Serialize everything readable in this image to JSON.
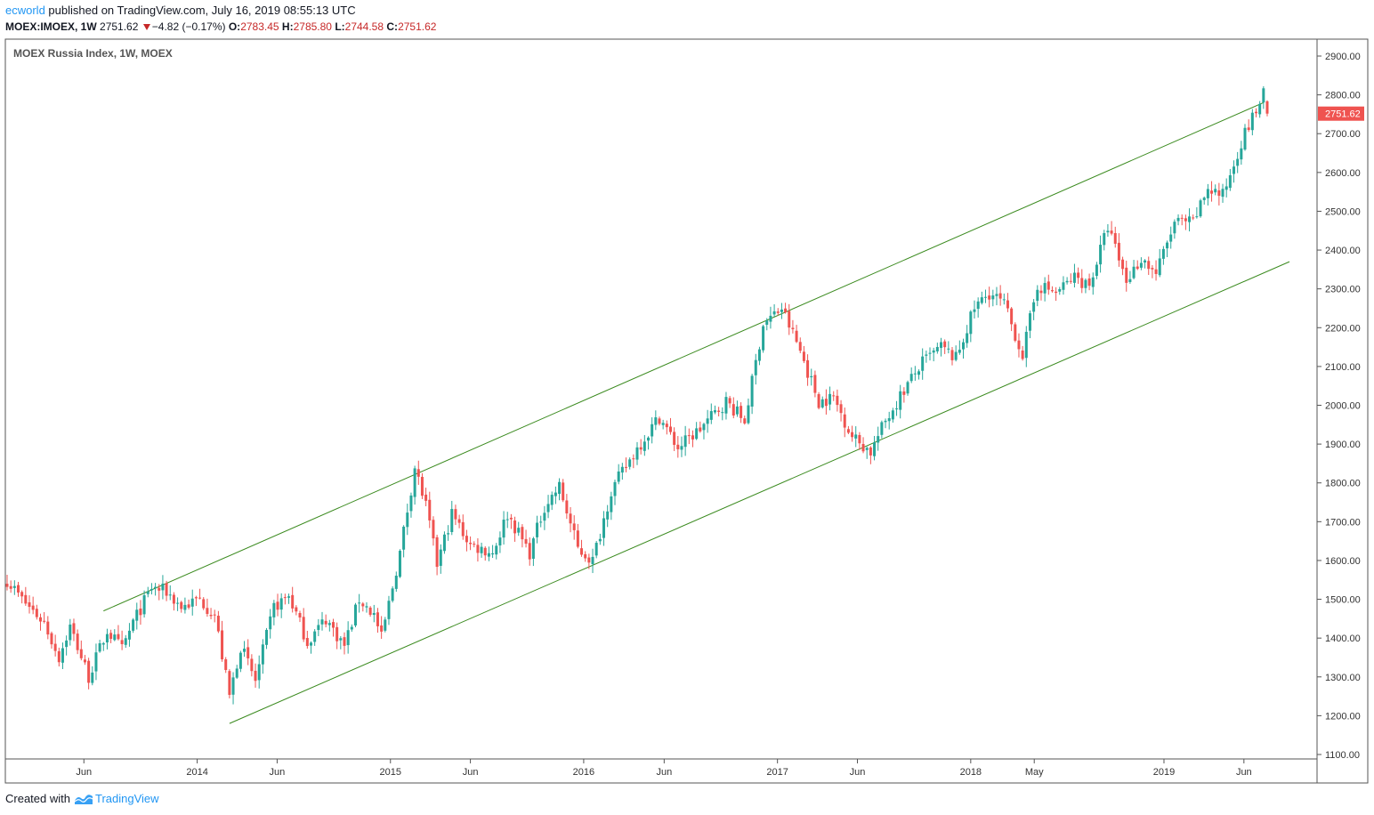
{
  "header": {
    "publisher": "ecworld",
    "published_text": "published on TradingView.com, July 16, 2019 08:55:13 UTC",
    "symbol_line": "MOEX:IMOEX, 1W",
    "last": "2751.62",
    "change": "−4.82 (−0.17%)",
    "o_label": "O:",
    "o_value": "2783.45",
    "h_label": "H:",
    "h_value": "2785.80",
    "l_label": "L:",
    "l_value": "2744.58",
    "c_label": "C:",
    "c_value": "2751.62"
  },
  "footer": {
    "created_with": "Created with",
    "brand": "TradingView"
  },
  "colors": {
    "up": "#26a69a",
    "down": "#ef5350",
    "channel": "#3a8a1e",
    "price_label_bg": "#ef5350"
  },
  "chart_data": {
    "type": "candlestick",
    "title": "MOEX Russia Index, 1W, MOEX",
    "ylim": [
      1100,
      2900
    ],
    "y_ticks": [
      "2900.00",
      "2800.00",
      "2700.00",
      "2600.00",
      "2500.00",
      "2400.00",
      "2300.00",
      "2200.00",
      "2100.00",
      "2000.00",
      "1900.00",
      "1800.00",
      "1700.00",
      "1600.00",
      "1500.00",
      "1400.00",
      "1300.00",
      "1200.00",
      "1100.00"
    ],
    "x_ticks": [
      {
        "label": "Jun",
        "date": "2013-06-01"
      },
      {
        "label": "2014",
        "date": "2014-01-01"
      },
      {
        "label": "Jun",
        "date": "2014-06-01"
      },
      {
        "label": "2015",
        "date": "2015-01-01"
      },
      {
        "label": "Jun",
        "date": "2015-06-01"
      },
      {
        "label": "2016",
        "date": "2016-01-01"
      },
      {
        "label": "Jun",
        "date": "2016-06-01"
      },
      {
        "label": "2017",
        "date": "2017-01-01"
      },
      {
        "label": "Jun",
        "date": "2017-06-01"
      },
      {
        "label": "2018",
        "date": "2018-01-01"
      },
      {
        "label": "May",
        "date": "2018-05-01"
      },
      {
        "label": "2019",
        "date": "2019-01-01"
      },
      {
        "label": "Jun",
        "date": "2019-06-01"
      }
    ],
    "last_price_label": "2751.62",
    "channel_lines": [
      {
        "name": "upper",
        "x": [
          "2013-07-08",
          "2019-07-08"
        ],
        "y": [
          1470,
          2780
        ]
      },
      {
        "name": "lower",
        "x": [
          "2014-03-03",
          "2019-08-26"
        ],
        "y": [
          1180,
          2370
        ]
      }
    ],
    "anchors": [
      [
        "2013-01-07",
        1550
      ],
      [
        "2013-02-04",
        1500
      ],
      [
        "2013-03-18",
        1440
      ],
      [
        "2013-04-15",
        1350
      ],
      [
        "2013-05-06",
        1430
      ],
      [
        "2013-06-10",
        1300
      ],
      [
        "2013-07-15",
        1420
      ],
      [
        "2013-08-12",
        1370
      ],
      [
        "2013-09-02",
        1440
      ],
      [
        "2013-10-07",
        1530
      ],
      [
        "2013-11-04",
        1520
      ],
      [
        "2013-12-02",
        1480
      ],
      [
        "2014-01-06",
        1500
      ],
      [
        "2014-02-03",
        1460
      ],
      [
        "2014-03-03",
        1250
      ],
      [
        "2014-03-24",
        1380
      ],
      [
        "2014-04-21",
        1290
      ],
      [
        "2014-05-26",
        1480
      ],
      [
        "2014-06-23",
        1510
      ],
      [
        "2014-07-28",
        1390
      ],
      [
        "2014-09-01",
        1450
      ],
      [
        "2014-10-06",
        1380
      ],
      [
        "2014-11-03",
        1500
      ],
      [
        "2014-12-01",
        1460
      ],
      [
        "2014-12-15",
        1400
      ],
      [
        "2015-01-19",
        1620
      ],
      [
        "2015-02-16",
        1840
      ],
      [
        "2015-03-09",
        1740
      ],
      [
        "2015-03-30",
        1590
      ],
      [
        "2015-04-27",
        1720
      ],
      [
        "2015-06-01",
        1640
      ],
      [
        "2015-07-13",
        1620
      ],
      [
        "2015-08-10",
        1720
      ],
      [
        "2015-09-21",
        1620
      ],
      [
        "2015-10-19",
        1740
      ],
      [
        "2015-11-16",
        1790
      ],
      [
        "2015-12-21",
        1630
      ],
      [
        "2016-01-18",
        1600
      ],
      [
        "2016-02-22",
        1780
      ],
      [
        "2016-04-11",
        1890
      ],
      [
        "2016-05-23",
        1970
      ],
      [
        "2016-06-27",
        1890
      ],
      [
        "2016-08-08",
        1940
      ],
      [
        "2016-09-26",
        2010
      ],
      [
        "2016-10-31",
        1960
      ],
      [
        "2016-12-05",
        2210
      ],
      [
        "2017-01-09",
        2250
      ],
      [
        "2017-02-13",
        2140
      ],
      [
        "2017-03-20",
        2010
      ],
      [
        "2017-04-17",
        2020
      ],
      [
        "2017-05-22",
        1920
      ],
      [
        "2017-06-26",
        1880
      ],
      [
        "2017-07-24",
        1960
      ],
      [
        "2017-08-28",
        2040
      ],
      [
        "2017-10-02",
        2110
      ],
      [
        "2017-11-06",
        2150
      ],
      [
        "2017-12-04",
        2120
      ],
      [
        "2018-01-08",
        2250
      ],
      [
        "2018-02-05",
        2290
      ],
      [
        "2018-03-05",
        2260
      ],
      [
        "2018-04-09",
        2130
      ],
      [
        "2018-05-07",
        2310
      ],
      [
        "2018-06-11",
        2290
      ],
      [
        "2018-07-16",
        2330
      ],
      [
        "2018-08-13",
        2310
      ],
      [
        "2018-09-17",
        2460
      ],
      [
        "2018-10-22",
        2320
      ],
      [
        "2018-11-19",
        2380
      ],
      [
        "2018-12-17",
        2340
      ],
      [
        "2019-01-21",
        2470
      ],
      [
        "2019-02-25",
        2470
      ],
      [
        "2019-03-25",
        2560
      ],
      [
        "2019-04-22",
        2540
      ],
      [
        "2019-05-27",
        2680
      ],
      [
        "2019-06-24",
        2760
      ],
      [
        "2019-07-08",
        2800
      ],
      [
        "2019-07-15",
        2751.62
      ]
    ]
  }
}
